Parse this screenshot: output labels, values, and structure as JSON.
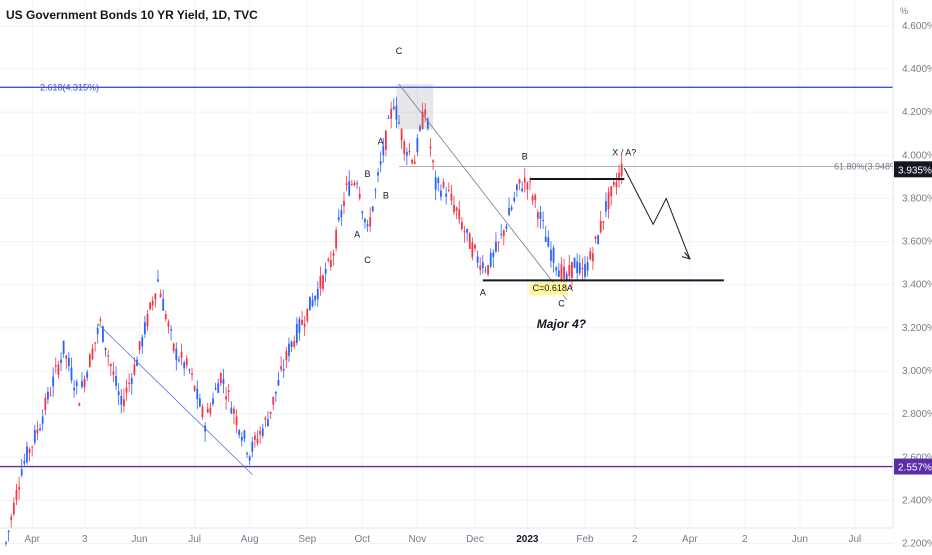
{
  "chart_data": {
    "type": "candlestick",
    "title": "US Government Bonds 10 YR Yield, 1D, TVC",
    "y_unit": "%",
    "ylim": [
      2.17,
      4.72
    ],
    "y_ticks": [
      "2.200%",
      "2.400%",
      "2.600%",
      "2.800%",
      "3.000%",
      "3.200%",
      "3.400%",
      "3.600%",
      "3.800%",
      "4.000%",
      "4.200%",
      "4.400%",
      "4.600%"
    ],
    "x_labels": [
      {
        "label": "Apr",
        "index": 10,
        "bold": false
      },
      {
        "label": "3",
        "index": 30,
        "bold": false
      },
      {
        "label": "Jun",
        "index": 51,
        "bold": false
      },
      {
        "label": "Jul",
        "index": 72,
        "bold": false
      },
      {
        "label": "Aug",
        "index": 93,
        "bold": false
      },
      {
        "label": "Sep",
        "index": 115,
        "bold": false
      },
      {
        "label": "Oct",
        "index": 136,
        "bold": false
      },
      {
        "label": "Nov",
        "index": 157,
        "bold": false
      },
      {
        "label": "Dec",
        "index": 179,
        "bold": false
      },
      {
        "label": "2023",
        "index": 199,
        "bold": true
      },
      {
        "label": "Feb",
        "index": 221,
        "bold": false
      },
      {
        "label": "2",
        "index": 240,
        "bold": false
      },
      {
        "label": "Apr",
        "index": 261,
        "bold": false
      },
      {
        "label": "2",
        "index": 282,
        "bold": false
      },
      {
        "label": "Jun",
        "index": 303,
        "bold": false
      },
      {
        "label": "Jul",
        "index": 324,
        "bold": false
      }
    ],
    "candle_count": 236,
    "anchors": [
      [
        0,
        2.2
      ],
      [
        6,
        2.55
      ],
      [
        12,
        2.72
      ],
      [
        18,
        2.95
      ],
      [
        22,
        3.1
      ],
      [
        28,
        2.88
      ],
      [
        36,
        3.22
      ],
      [
        44,
        2.84
      ],
      [
        50,
        3.05
      ],
      [
        58,
        3.42
      ],
      [
        64,
        3.1
      ],
      [
        70,
        3.0
      ],
      [
        76,
        2.76
      ],
      [
        82,
        2.98
      ],
      [
        88,
        2.78
      ],
      [
        93,
        2.62
      ],
      [
        100,
        2.78
      ],
      [
        108,
        3.1
      ],
      [
        116,
        3.3
      ],
      [
        124,
        3.5
      ],
      [
        130,
        3.84
      ],
      [
        134,
        3.9
      ],
      [
        138,
        3.64
      ],
      [
        143,
        3.95
      ],
      [
        148,
        4.25
      ],
      [
        152,
        4.05
      ],
      [
        156,
        3.98
      ],
      [
        160,
        4.22
      ],
      [
        164,
        3.86
      ],
      [
        168,
        3.84
      ],
      [
        172,
        3.74
      ],
      [
        176,
        3.62
      ],
      [
        180,
        3.52
      ],
      [
        184,
        3.48
      ],
      [
        188,
        3.58
      ],
      [
        192,
        3.72
      ],
      [
        196,
        3.86
      ],
      [
        199,
        3.88
      ],
      [
        203,
        3.75
      ],
      [
        207,
        3.58
      ],
      [
        211,
        3.48
      ],
      [
        214,
        3.42
      ],
      [
        217,
        3.5
      ],
      [
        220,
        3.45
      ],
      [
        223,
        3.52
      ],
      [
        226,
        3.62
      ],
      [
        229,
        3.76
      ],
      [
        232,
        3.84
      ],
      [
        235,
        3.94
      ]
    ],
    "reference_lines": [
      {
        "value": 4.315,
        "label": "2.618(4.315%)",
        "color": "#3f51d8"
      },
      {
        "value": 3.948,
        "label": "61.80%(3.948%)",
        "color": "#b2b5be"
      },
      {
        "value": 2.557,
        "color": "#5b2ea6"
      }
    ],
    "price_tags": [
      {
        "value": 3.935,
        "label": "3.935%",
        "bg": "#131722"
      },
      {
        "value": 2.557,
        "label": "2.557%",
        "bg": "#5b2ea6"
      }
    ],
    "wave_labels": [
      {
        "text": "C",
        "index": 150,
        "value": 4.47,
        "italic": false
      },
      {
        "text": "A",
        "index": 143,
        "value": 4.05,
        "italic": false
      },
      {
        "text": "B",
        "index": 138,
        "value": 3.9,
        "italic": false
      },
      {
        "text": "B",
        "index": 145,
        "value": 3.8,
        "italic": false
      },
      {
        "text": "A",
        "index": 134,
        "value": 3.62,
        "italic": false
      },
      {
        "text": "C",
        "index": 138,
        "value": 3.5,
        "italic": false
      },
      {
        "text": "B",
        "index": 198,
        "value": 3.98,
        "italic": false
      },
      {
        "text": "A",
        "index": 182,
        "value": 3.35,
        "italic": false
      },
      {
        "text": "C",
        "index": 212,
        "value": 3.3,
        "italic": false
      },
      {
        "text": "X / A?",
        "index": 236,
        "value": 4.0,
        "italic": false
      },
      {
        "text": "Major 4?",
        "index": 212,
        "value": 3.2,
        "italic": true
      }
    ],
    "annotation_box": {
      "text": "C=0.618A",
      "index": 201,
      "value": 3.37,
      "bg": "#fff59d"
    },
    "colors": {
      "up": "#2962ff",
      "down": "#f23645",
      "grid": "#f0f3fa",
      "axis_text": "#787b86"
    }
  }
}
